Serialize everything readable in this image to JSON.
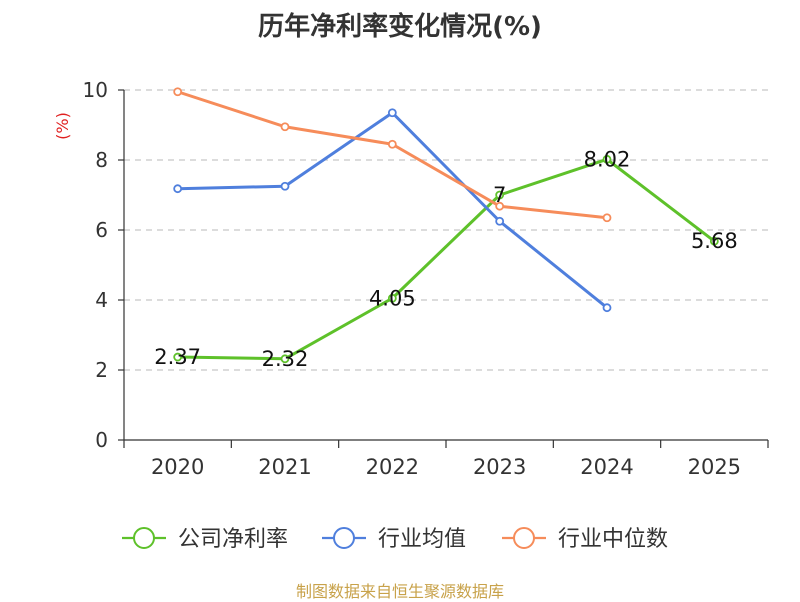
{
  "chart_data": {
    "type": "line",
    "title": "历年净利率变化情况(%)",
    "ylabel": "(%)",
    "xlabel": "",
    "categories": [
      "2020",
      "2021",
      "2022",
      "2023",
      "2024",
      "2025"
    ],
    "ylim": [
      0,
      10
    ],
    "yticks": [
      0,
      2,
      4,
      6,
      8,
      10
    ],
    "grid": true,
    "legend_position": "bottom",
    "series": [
      {
        "name": "公司净利率",
        "color": "#5ec12a",
        "values": [
          2.37,
          2.32,
          4.05,
          7,
          8.02,
          5.68
        ],
        "data_labels": [
          "2.37",
          "2.32",
          "4.05",
          "7",
          "8.02",
          "5.68"
        ]
      },
      {
        "name": "行业均值",
        "color": "#4f7fdd",
        "values": [
          7.18,
          7.25,
          9.35,
          6.25,
          3.78,
          null
        ]
      },
      {
        "name": "行业中位数",
        "color": "#f68c5a",
        "values": [
          9.95,
          8.95,
          8.45,
          6.68,
          6.35,
          null
        ]
      }
    ],
    "ylabel_color": "#e02020"
  },
  "source_note": "制图数据来自恒生聚源数据库"
}
